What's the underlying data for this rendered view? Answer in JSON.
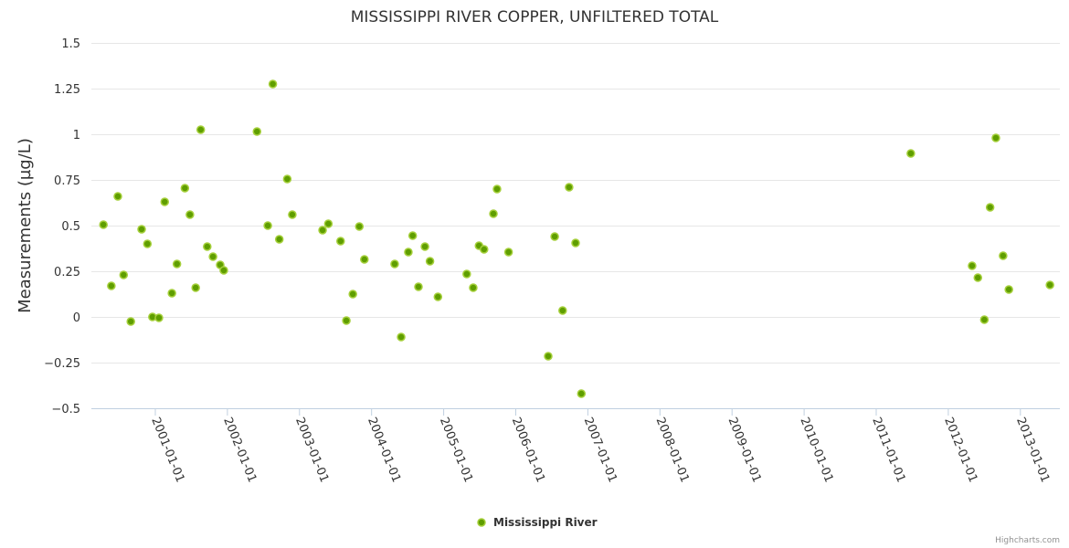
{
  "chart_data": {
    "type": "scatter",
    "title": "MISSISSIPPI RIVER COPPER, UNFILTERED TOTAL",
    "xlabel": "",
    "ylabel": "Measurements (µg/L)",
    "ylim": [
      -0.5,
      1.5
    ],
    "xlim_decimal_year": [
      2000.11,
      2013.55
    ],
    "y_ticks": [
      -0.5,
      -0.25,
      0,
      0.25,
      0.5,
      0.75,
      1,
      1.25,
      1.5
    ],
    "y_tick_labels": [
      "−0.5",
      "−0.25",
      "0",
      "0.25",
      "0.5",
      "0.75",
      "1",
      "1.25",
      "1.5"
    ],
    "x_ticks": [
      2001,
      2002,
      2003,
      2004,
      2005,
      2006,
      2007,
      2008,
      2009,
      2010,
      2011,
      2012,
      2013
    ],
    "x_tick_labels": [
      "2001-01-01",
      "2002-01-01",
      "2003-01-01",
      "2004-01-01",
      "2005-01-01",
      "2006-01-01",
      "2007-01-01",
      "2008-01-01",
      "2009-01-01",
      "2010-01-01",
      "2011-01-01",
      "2012-01-01",
      "2013-01-01"
    ],
    "grid": true,
    "legend_position": "bottom-center",
    "credits": "Highcharts.com",
    "series": [
      {
        "name": "Mississippi River",
        "color": "#5f9e00",
        "points": [
          [
            2000.28,
            0.505
          ],
          [
            2000.39,
            0.17
          ],
          [
            2000.48,
            0.66
          ],
          [
            2000.56,
            0.23
          ],
          [
            2000.66,
            -0.025
          ],
          [
            2000.81,
            0.48
          ],
          [
            2000.89,
            0.4
          ],
          [
            2000.96,
            0.0
          ],
          [
            2001.05,
            -0.005
          ],
          [
            2001.13,
            0.63
          ],
          [
            2001.23,
            0.13
          ],
          [
            2001.3,
            0.29
          ],
          [
            2001.41,
            0.705
          ],
          [
            2001.48,
            0.56
          ],
          [
            2001.56,
            0.16
          ],
          [
            2001.63,
            1.025
          ],
          [
            2001.72,
            0.385
          ],
          [
            2001.8,
            0.33
          ],
          [
            2001.9,
            0.285
          ],
          [
            2001.95,
            0.255
          ],
          [
            2002.41,
            1.015
          ],
          [
            2002.56,
            0.5
          ],
          [
            2002.63,
            1.275
          ],
          [
            2002.72,
            0.425
          ],
          [
            2002.83,
            0.755
          ],
          [
            2002.9,
            0.56
          ],
          [
            2003.32,
            0.475
          ],
          [
            2003.4,
            0.51
          ],
          [
            2003.57,
            0.415
          ],
          [
            2003.65,
            -0.02
          ],
          [
            2003.74,
            0.125
          ],
          [
            2003.83,
            0.495
          ],
          [
            2003.9,
            0.315
          ],
          [
            2004.32,
            0.29
          ],
          [
            2004.41,
            -0.11
          ],
          [
            2004.51,
            0.355
          ],
          [
            2004.57,
            0.445
          ],
          [
            2004.65,
            0.165
          ],
          [
            2004.74,
            0.385
          ],
          [
            2004.81,
            0.305
          ],
          [
            2004.92,
            0.11
          ],
          [
            2005.32,
            0.235
          ],
          [
            2005.41,
            0.16
          ],
          [
            2005.49,
            0.39
          ],
          [
            2005.56,
            0.37
          ],
          [
            2005.69,
            0.565
          ],
          [
            2005.74,
            0.7
          ],
          [
            2005.9,
            0.355
          ],
          [
            2006.45,
            -0.215
          ],
          [
            2006.54,
            0.44
          ],
          [
            2006.65,
            0.035
          ],
          [
            2006.74,
            0.71
          ],
          [
            2006.83,
            0.405
          ],
          [
            2006.91,
            -0.42
          ],
          [
            2011.48,
            0.895
          ],
          [
            2012.33,
            0.28
          ],
          [
            2012.41,
            0.215
          ],
          [
            2012.5,
            -0.015
          ],
          [
            2012.58,
            0.6
          ],
          [
            2012.66,
            0.98
          ],
          [
            2012.76,
            0.335
          ],
          [
            2012.84,
            0.15
          ],
          [
            2013.41,
            0.175
          ]
        ]
      }
    ]
  }
}
